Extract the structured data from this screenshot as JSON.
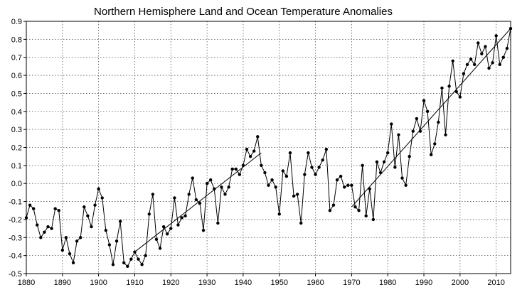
{
  "chart_data": {
    "type": "line",
    "title": "Northern Hemisphere Land and Ocean Temperature Anomalies",
    "xlabel": "",
    "ylabel": "",
    "xlim": [
      1880,
      2014
    ],
    "ylim": [
      -0.5,
      0.9
    ],
    "x_ticks": [
      1880,
      1890,
      1900,
      1910,
      1920,
      1930,
      1940,
      1950,
      1960,
      1970,
      1980,
      1990,
      2000,
      2010
    ],
    "x_tick_labels": [
      "1880",
      "1890",
      "1900",
      "1910",
      "1920",
      "1930",
      "1940",
      "1950",
      "1960",
      "1970",
      "1980",
      "1990",
      "2000",
      "2010"
    ],
    "y_ticks": [
      -0.5,
      -0.4,
      -0.3,
      -0.2,
      -0.1,
      0.0,
      0.1,
      0.2,
      0.3,
      0.4,
      0.5,
      0.6,
      0.7,
      0.8,
      0.9
    ],
    "y_tick_labels": [
      "-0.5",
      "-0.4",
      "-0.3",
      "-0.2",
      "-0.1",
      "0.0",
      "0.1",
      "0.2",
      "0.3",
      "0.4",
      "0.5",
      "0.6",
      "0.7",
      "0.8",
      "0.9"
    ],
    "grid": true,
    "series": [
      {
        "x": [
          1880,
          1881,
          1882,
          1883,
          1884,
          1885,
          1886,
          1887,
          1888,
          1889,
          1890,
          1891,
          1892,
          1893,
          1894,
          1895,
          1896,
          1897,
          1898,
          1899,
          1900,
          1901,
          1902,
          1903,
          1904,
          1905,
          1906,
          1907,
          1908,
          1909,
          1910,
          1911,
          1912,
          1913,
          1914,
          1915,
          1916,
          1917,
          1918,
          1919,
          1920,
          1921,
          1922,
          1923,
          1924,
          1925,
          1926,
          1927,
          1928,
          1929,
          1930,
          1931,
          1932,
          1933,
          1934,
          1935,
          1936,
          1937,
          1938,
          1939,
          1940,
          1941,
          1942,
          1943,
          1944,
          1945,
          1946,
          1947,
          1948,
          1949,
          1950,
          1951,
          1952,
          1953,
          1954,
          1955,
          1956,
          1957,
          1958,
          1959,
          1960,
          1961,
          1962,
          1963,
          1964,
          1965,
          1966,
          1967,
          1968,
          1969,
          1970,
          1971,
          1972,
          1973,
          1974,
          1975,
          1976,
          1977,
          1978,
          1979,
          1980,
          1981,
          1982,
          1983,
          1984,
          1985,
          1986,
          1987,
          1988,
          1989,
          1990,
          1991,
          1992,
          1993,
          1994,
          1995,
          1996,
          1997,
          1998,
          1999,
          2000,
          2001,
          2002,
          2003,
          2004,
          2005,
          2006,
          2007,
          2008,
          2009,
          2010,
          2011,
          2012,
          2013,
          2014
        ],
        "values": [
          -0.19,
          -0.12,
          -0.14,
          -0.23,
          -0.3,
          -0.27,
          -0.24,
          -0.25,
          -0.14,
          -0.15,
          -0.37,
          -0.3,
          -0.39,
          -0.44,
          -0.32,
          -0.3,
          -0.13,
          -0.18,
          -0.24,
          -0.12,
          -0.03,
          -0.08,
          -0.26,
          -0.34,
          -0.45,
          -0.32,
          -0.21,
          -0.44,
          -0.46,
          -0.42,
          -0.38,
          -0.42,
          -0.45,
          -0.4,
          -0.17,
          -0.06,
          -0.31,
          -0.36,
          -0.24,
          -0.28,
          -0.25,
          -0.08,
          -0.23,
          -0.19,
          -0.18,
          -0.06,
          0.03,
          -0.09,
          -0.11,
          -0.26,
          0.0,
          0.02,
          -0.03,
          -0.22,
          -0.02,
          -0.06,
          -0.02,
          0.08,
          0.08,
          0.05,
          0.1,
          0.19,
          0.15,
          0.18,
          0.26,
          0.1,
          0.06,
          -0.01,
          0.02,
          -0.02,
          -0.17,
          0.07,
          0.04,
          0.17,
          -0.07,
          -0.06,
          -0.22,
          0.05,
          0.17,
          0.09,
          0.05,
          0.09,
          0.13,
          0.19,
          -0.15,
          -0.12,
          0.02,
          0.04,
          -0.02,
          -0.01,
          -0.01,
          -0.13,
          -0.15,
          0.1,
          -0.18,
          -0.03,
          -0.2,
          0.12,
          0.06,
          0.12,
          0.17,
          0.33,
          0.09,
          0.27,
          0.03,
          -0.01,
          0.15,
          0.29,
          0.36,
          0.29,
          0.46,
          0.4,
          0.16,
          0.22,
          0.34,
          0.53,
          0.27,
          0.54,
          0.68,
          0.51,
          0.48,
          0.61,
          0.66,
          0.69,
          0.66,
          0.78,
          0.72,
          0.76,
          0.64,
          0.67,
          0.82,
          0.66,
          0.7,
          0.75,
          0.86
        ]
      }
    ],
    "trend_lines": [
      {
        "x": [
          1910,
          1945
        ],
        "values": [
          -0.38,
          0.17
        ]
      },
      {
        "x": [
          1970,
          2014
        ],
        "values": [
          -0.13,
          0.86
        ]
      }
    ]
  }
}
